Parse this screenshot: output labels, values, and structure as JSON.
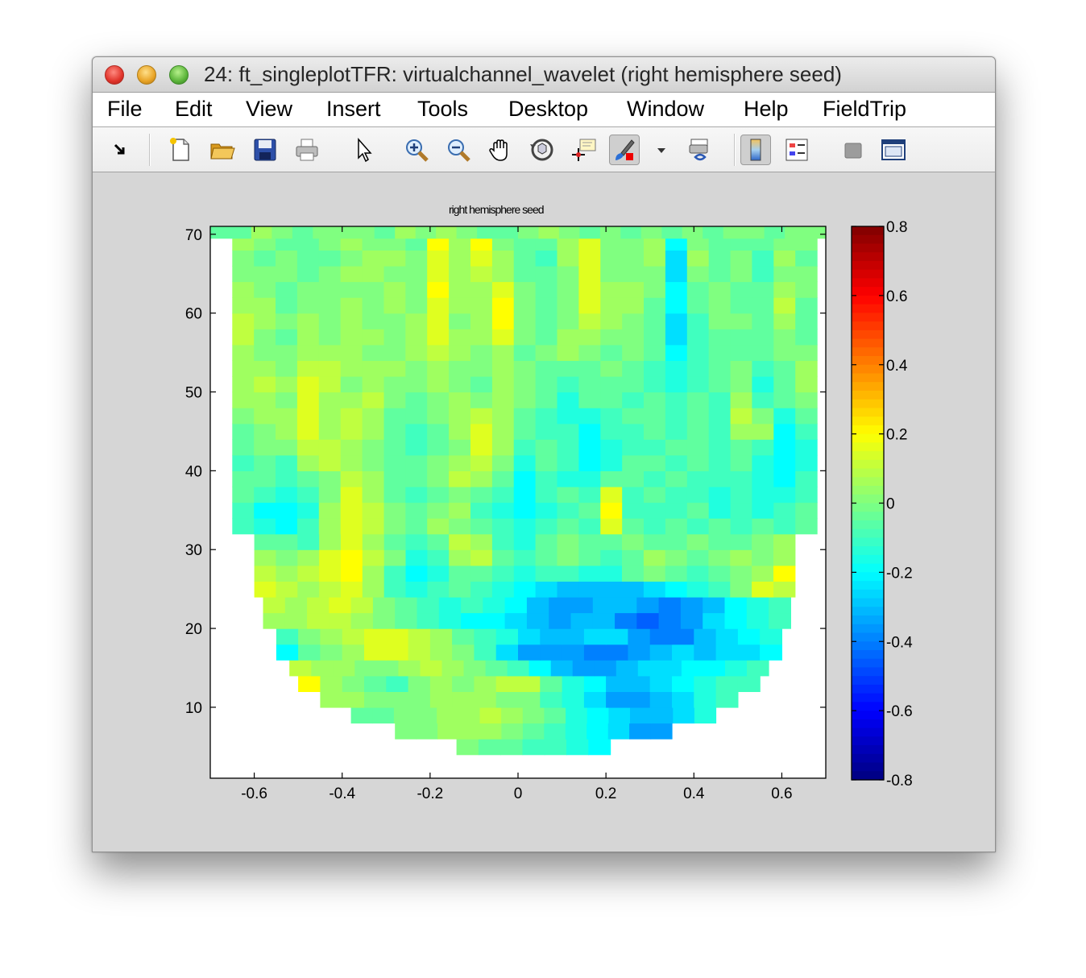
{
  "window": {
    "title": "24: ft_singleplotTFR: virtualchannel_wavelet (right hemisphere seed)"
  },
  "menu": [
    "File",
    "Edit",
    "View",
    "Insert",
    "Tools",
    "Desktop",
    "Window",
    "Help",
    "FieldTrip"
  ],
  "toolbar": [
    {
      "name": "arrow-dock-icon"
    },
    {
      "name": "new-figure-icon"
    },
    {
      "name": "open-file-icon"
    },
    {
      "name": "save-figure-icon"
    },
    {
      "name": "print-figure-icon"
    },
    {
      "name": "edit-plot-icon"
    },
    {
      "name": "zoom-in-icon"
    },
    {
      "name": "zoom-out-icon"
    },
    {
      "name": "pan-icon"
    },
    {
      "name": "rotate-3d-icon"
    },
    {
      "name": "data-cursor-icon"
    },
    {
      "name": "brush-icon"
    },
    {
      "name": "brush-dropdown-icon"
    },
    {
      "name": "link-plot-icon"
    },
    {
      "name": "insert-colorbar-icon"
    },
    {
      "name": "insert-legend-icon"
    },
    {
      "name": "hide-plot-tools-icon"
    },
    {
      "name": "show-plot-tools-icon"
    }
  ],
  "plot": {
    "title": "right hemisphere seed"
  },
  "chart_data": {
    "type": "heatmap",
    "title": "right hemisphere seed",
    "xlabel": "",
    "ylabel": "",
    "xlim": [
      -0.7,
      0.7
    ],
    "ylim": [
      1,
      71
    ],
    "x_ticks": [
      -0.6,
      -0.4,
      -0.2,
      0,
      0.2,
      0.4,
      0.6
    ],
    "x_tick_labels": [
      "-0.6",
      "-0.4",
      "-0.2",
      "0",
      "0.2",
      "0.4",
      "0.6"
    ],
    "y_ticks": [
      10,
      20,
      30,
      40,
      50,
      60,
      70
    ],
    "y_tick_labels": [
      "10",
      "20",
      "30",
      "40",
      "50",
      "60",
      "70"
    ],
    "colormap": "jet",
    "clim": [
      -0.8,
      0.8
    ],
    "colorbar_ticks": [
      0.8,
      0.6,
      0.4,
      0.2,
      0,
      -0.2,
      -0.4,
      -0.6,
      -0.8
    ],
    "colorbar_tick_labels": [
      "0.8",
      "0.6",
      "0.4",
      "0.2",
      "0",
      "-0.2",
      "-0.4",
      "-0.6",
      "-0.8"
    ],
    "x_bins": [
      -0.65,
      -0.6,
      -0.55,
      -0.5,
      -0.45,
      -0.4,
      -0.35,
      -0.3,
      -0.25,
      -0.2,
      -0.15,
      -0.1,
      -0.05,
      0,
      0.05,
      0.1,
      0.15,
      0.2,
      0.25,
      0.3,
      0.35,
      0.4,
      0.45,
      0.5,
      0.55,
      0.6,
      0.65
    ],
    "rows": [
      {
        "y": 5,
        "x_from": -0.14,
        "x_to": 0.21,
        "values": [
          0.0,
          -0.05,
          -0.05,
          -0.1,
          -0.1,
          -0.15,
          -0.2
        ]
      },
      {
        "y": 7,
        "x_from": -0.28,
        "x_to": 0.35,
        "values": [
          0.0,
          0.0,
          0.05,
          0.05,
          0.05,
          0.0,
          -0.05,
          -0.1,
          -0.15,
          -0.2,
          -0.25,
          -0.35,
          -0.35
        ]
      },
      {
        "y": 9,
        "x_from": -0.38,
        "x_to": 0.45,
        "values": [
          -0.05,
          -0.05,
          0.0,
          0.0,
          0.05,
          0.05,
          0.1,
          0.05,
          0.0,
          -0.05,
          -0.15,
          -0.2,
          -0.25,
          -0.3,
          -0.3,
          -0.25,
          -0.15
        ]
      },
      {
        "y": 11,
        "x_from": -0.45,
        "x_to": 0.5,
        "values": [
          0.05,
          0.05,
          0.0,
          0.0,
          0.0,
          0.05,
          0.05,
          0.05,
          0.0,
          0.0,
          -0.1,
          -0.15,
          -0.25,
          -0.35,
          -0.35,
          -0.3,
          -0.25,
          -0.15,
          -0.1
        ]
      },
      {
        "y": 13,
        "x_from": -0.5,
        "x_to": 0.55,
        "values": [
          0.2,
          0.05,
          0.0,
          -0.05,
          -0.1,
          0.0,
          0.05,
          0.0,
          0.05,
          0.1,
          0.1,
          -0.05,
          -0.15,
          -0.2,
          -0.3,
          -0.3,
          -0.25,
          -0.2,
          -0.15,
          -0.1,
          -0.1
        ]
      },
      {
        "y": 15,
        "x_from": -0.52,
        "x_to": 0.57,
        "values": [
          0.1,
          0.05,
          0.05,
          0.0,
          0.0,
          0.05,
          0.1,
          0.05,
          0.0,
          -0.05,
          -0.1,
          -0.2,
          -0.3,
          -0.35,
          -0.35,
          -0.3,
          -0.25,
          -0.25,
          -0.2,
          -0.2,
          -0.15,
          -0.1
        ]
      },
      {
        "y": 17,
        "x_from": -0.55,
        "x_to": 0.6,
        "values": [
          -0.2,
          -0.05,
          0.0,
          0.05,
          0.15,
          0.15,
          0.1,
          0.05,
          0.0,
          -0.1,
          -0.25,
          -0.35,
          -0.35,
          -0.35,
          -0.4,
          -0.4,
          -0.35,
          -0.3,
          -0.25,
          -0.3,
          -0.25,
          -0.25,
          -0.2
        ]
      },
      {
        "y": 19,
        "x_from": -0.55,
        "x_to": 0.6,
        "values": [
          -0.1,
          0.0,
          0.05,
          0.1,
          0.15,
          0.15,
          0.1,
          0.05,
          -0.05,
          -0.1,
          -0.15,
          -0.25,
          -0.3,
          -0.3,
          -0.25,
          -0.25,
          -0.35,
          -0.4,
          -0.4,
          -0.3,
          -0.25,
          -0.2,
          -0.15
        ]
      },
      {
        "y": 21,
        "x_from": -0.58,
        "x_to": 0.62,
        "values": [
          0.05,
          0.05,
          0.1,
          0.1,
          0.05,
          0.0,
          -0.05,
          -0.1,
          -0.15,
          -0.2,
          -0.2,
          -0.25,
          -0.3,
          -0.35,
          -0.3,
          -0.3,
          -0.4,
          -0.45,
          -0.4,
          -0.35,
          -0.25,
          -0.2,
          -0.15,
          -0.1
        ]
      },
      {
        "y": 23,
        "x_from": -0.58,
        "x_to": 0.62,
        "values": [
          0.1,
          0.05,
          0.1,
          0.15,
          0.1,
          0.0,
          -0.05,
          -0.1,
          -0.15,
          -0.1,
          -0.15,
          -0.2,
          -0.3,
          -0.35,
          -0.35,
          -0.3,
          -0.3,
          -0.35,
          -0.4,
          -0.35,
          -0.3,
          -0.2,
          -0.15,
          -0.1
        ]
      },
      {
        "y": 25,
        "x_from": -0.6,
        "x_to": 0.63,
        "values": [
          0.15,
          0.1,
          0.05,
          0.1,
          0.15,
          0.05,
          -0.1,
          -0.15,
          -0.1,
          -0.05,
          -0.1,
          -0.15,
          -0.2,
          -0.25,
          -0.3,
          -0.3,
          -0.3,
          -0.3,
          -0.25,
          -0.2,
          -0.15,
          -0.1,
          0.0,
          0.15,
          0.1
        ]
      },
      {
        "y": 27,
        "x_from": -0.6,
        "x_to": 0.63,
        "values": [
          0.1,
          0.05,
          0.1,
          0.15,
          0.2,
          0.05,
          -0.1,
          -0.2,
          -0.15,
          -0.05,
          -0.05,
          -0.1,
          -0.15,
          -0.1,
          -0.1,
          -0.15,
          -0.15,
          -0.05,
          0.0,
          -0.05,
          -0.1,
          -0.05,
          0.0,
          0.05,
          0.2
        ]
      },
      {
        "y": 29,
        "x_from": -0.6,
        "x_to": 0.63,
        "values": [
          0.05,
          0.0,
          0.05,
          0.15,
          0.2,
          0.1,
          0.0,
          -0.15,
          -0.1,
          0.05,
          0.1,
          -0.05,
          -0.1,
          -0.05,
          0.0,
          -0.05,
          -0.1,
          -0.05,
          0.05,
          0.0,
          -0.05,
          0.0,
          0.05,
          0.0,
          0.05
        ]
      },
      {
        "y": 31,
        "x_from": -0.6,
        "x_to": 0.63,
        "values": [
          -0.05,
          -0.05,
          -0.1,
          0.05,
          0.15,
          0.05,
          -0.05,
          -0.1,
          -0.05,
          0.1,
          0.05,
          -0.1,
          -0.15,
          -0.05,
          0.0,
          -0.05,
          -0.05,
          0.0,
          -0.05,
          -0.05,
          0.0,
          -0.05,
          -0.05,
          0.0,
          0.05
        ]
      },
      {
        "y": 33,
        "x_from": -0.65,
        "x_to": 0.68,
        "values": [
          -0.1,
          -0.15,
          -0.2,
          -0.1,
          0.05,
          0.15,
          0.1,
          0.0,
          -0.05,
          0.05,
          0.0,
          -0.05,
          -0.1,
          -0.15,
          -0.1,
          -0.05,
          -0.1,
          0.15,
          -0.05,
          -0.1,
          -0.05,
          -0.1,
          -0.05,
          -0.1,
          -0.05,
          -0.1,
          -0.05
        ]
      },
      {
        "y": 35,
        "x_from": -0.65,
        "x_to": 0.68,
        "values": [
          -0.1,
          -0.2,
          -0.2,
          -0.15,
          0.05,
          0.15,
          0.1,
          0.0,
          -0.05,
          0.0,
          0.05,
          -0.1,
          -0.15,
          -0.2,
          -0.15,
          -0.1,
          -0.05,
          0.2,
          -0.1,
          -0.1,
          -0.1,
          -0.05,
          -0.15,
          -0.1,
          -0.15,
          -0.1,
          -0.05
        ]
      },
      {
        "y": 37,
        "x_from": -0.65,
        "x_to": 0.68,
        "values": [
          -0.05,
          -0.1,
          -0.15,
          -0.1,
          0.0,
          0.15,
          0.05,
          -0.05,
          -0.1,
          -0.05,
          0.0,
          -0.05,
          -0.1,
          -0.2,
          -0.1,
          -0.05,
          -0.1,
          0.15,
          -0.1,
          -0.05,
          -0.1,
          -0.1,
          -0.15,
          -0.1,
          -0.15,
          -0.15,
          -0.1
        ]
      },
      {
        "y": 39,
        "x_from": -0.65,
        "x_to": 0.68,
        "values": [
          -0.05,
          -0.05,
          -0.1,
          -0.05,
          0.0,
          0.1,
          0.05,
          -0.05,
          -0.05,
          0.0,
          0.1,
          0.05,
          -0.05,
          -0.2,
          -0.1,
          -0.15,
          -0.15,
          -0.05,
          -0.05,
          -0.1,
          -0.05,
          -0.1,
          -0.1,
          -0.1,
          -0.15,
          -0.2,
          -0.1
        ]
      },
      {
        "y": 41,
        "x_from": -0.65,
        "x_to": 0.68,
        "values": [
          -0.1,
          -0.05,
          -0.1,
          0.05,
          0.1,
          0.05,
          0.0,
          -0.05,
          -0.05,
          0.0,
          0.05,
          0.1,
          0.0,
          -0.15,
          -0.05,
          -0.1,
          -0.2,
          -0.15,
          -0.05,
          -0.05,
          -0.1,
          -0.05,
          -0.1,
          -0.05,
          -0.15,
          -0.2,
          -0.15
        ]
      },
      {
        "y": 43,
        "x_from": -0.65,
        "x_to": 0.68,
        "values": [
          -0.05,
          0.0,
          0.0,
          0.1,
          0.1,
          0.05,
          0.0,
          -0.05,
          -0.1,
          -0.05,
          0.0,
          0.15,
          0.05,
          -0.1,
          -0.05,
          -0.1,
          -0.2,
          -0.15,
          -0.1,
          -0.1,
          -0.05,
          -0.05,
          -0.1,
          -0.05,
          -0.1,
          -0.2,
          -0.15
        ]
      },
      {
        "y": 45,
        "x_from": -0.65,
        "x_to": 0.68,
        "values": [
          -0.05,
          0.0,
          0.05,
          0.15,
          0.05,
          0.1,
          0.05,
          -0.05,
          -0.1,
          -0.05,
          0.05,
          0.15,
          0.05,
          -0.05,
          -0.1,
          -0.1,
          -0.2,
          -0.1,
          -0.1,
          -0.05,
          -0.1,
          -0.05,
          -0.1,
          0.05,
          0.05,
          -0.2,
          -0.1
        ]
      },
      {
        "y": 47,
        "x_from": -0.65,
        "x_to": 0.68,
        "values": [
          0.0,
          0.05,
          0.05,
          0.15,
          0.05,
          0.1,
          0.05,
          -0.05,
          -0.05,
          0.0,
          0.05,
          0.1,
          0.05,
          -0.05,
          -0.1,
          -0.15,
          -0.15,
          -0.1,
          -0.05,
          -0.05,
          -0.1,
          -0.05,
          -0.1,
          0.1,
          0.0,
          -0.15,
          -0.05
        ]
      },
      {
        "y": 49,
        "x_from": -0.65,
        "x_to": 0.68,
        "values": [
          0.05,
          0.05,
          0.0,
          0.15,
          0.05,
          0.05,
          0.1,
          0.0,
          -0.05,
          0.0,
          0.05,
          0.0,
          0.05,
          0.0,
          -0.05,
          -0.15,
          -0.05,
          -0.05,
          -0.1,
          -0.05,
          -0.1,
          -0.05,
          -0.1,
          0.05,
          -0.1,
          -0.05,
          0.0
        ]
      },
      {
        "y": 51,
        "x_from": -0.65,
        "x_to": 0.68,
        "values": [
          0.05,
          0.1,
          0.05,
          0.15,
          0.1,
          0.0,
          0.05,
          0.0,
          0.0,
          0.05,
          0.0,
          -0.05,
          0.05,
          0.0,
          -0.05,
          -0.1,
          -0.05,
          -0.05,
          -0.05,
          -0.1,
          -0.15,
          -0.1,
          -0.05,
          0.0,
          -0.15,
          -0.05,
          0.05
        ]
      },
      {
        "y": 53,
        "x_from": -0.65,
        "x_to": 0.68,
        "values": [
          0.05,
          0.05,
          0.0,
          0.1,
          0.1,
          0.05,
          0.05,
          0.05,
          0.0,
          0.05,
          0.0,
          0.0,
          0.05,
          0.0,
          -0.05,
          -0.05,
          -0.05,
          0.0,
          -0.05,
          -0.1,
          -0.15,
          -0.1,
          -0.05,
          0.0,
          -0.1,
          -0.05,
          0.05
        ]
      },
      {
        "y": 55,
        "x_from": -0.65,
        "x_to": 0.68,
        "values": [
          0.05,
          0.0,
          0.0,
          0.05,
          0.05,
          0.05,
          0.0,
          0.0,
          0.05,
          0.1,
          0.05,
          0.0,
          0.05,
          -0.05,
          0.0,
          0.05,
          0.0,
          -0.05,
          0.0,
          -0.05,
          -0.2,
          -0.1,
          -0.05,
          -0.05,
          -0.05,
          0.0,
          0.0
        ]
      },
      {
        "y": 57,
        "x_from": -0.65,
        "x_to": 0.68,
        "values": [
          0.1,
          0.0,
          -0.05,
          0.05,
          0.0,
          0.05,
          0.05,
          0.0,
          0.05,
          0.15,
          0.05,
          0.05,
          0.15,
          0.0,
          -0.05,
          0.05,
          0.05,
          0.0,
          0.0,
          -0.05,
          -0.25,
          -0.1,
          -0.05,
          -0.05,
          -0.05,
          0.0,
          -0.05
        ]
      },
      {
        "y": 59,
        "x_from": -0.65,
        "x_to": 0.68,
        "values": [
          0.1,
          0.05,
          0.0,
          0.05,
          0.0,
          0.05,
          0.0,
          0.0,
          0.05,
          0.15,
          0.0,
          0.05,
          0.2,
          0.0,
          -0.05,
          0.0,
          0.1,
          0.05,
          0.0,
          -0.05,
          -0.25,
          -0.1,
          0.0,
          0.0,
          -0.05,
          0.05,
          -0.05
        ]
      },
      {
        "y": 61,
        "x_from": -0.65,
        "x_to": 0.68,
        "values": [
          0.05,
          0.05,
          -0.05,
          0.0,
          0.0,
          0.05,
          0.0,
          0.05,
          0.0,
          0.15,
          0.05,
          0.05,
          0.2,
          0.0,
          -0.05,
          0.0,
          0.15,
          0.05,
          0.05,
          -0.05,
          -0.2,
          -0.05,
          0.0,
          -0.05,
          -0.05,
          0.1,
          -0.05
        ]
      },
      {
        "y": 63,
        "x_from": -0.65,
        "x_to": 0.68,
        "values": [
          0.05,
          0.0,
          -0.05,
          0.0,
          0.0,
          0.0,
          0.0,
          0.05,
          0.0,
          0.2,
          0.05,
          0.05,
          0.15,
          0.0,
          -0.05,
          0.0,
          0.15,
          0.05,
          0.05,
          0.0,
          -0.2,
          -0.05,
          0.0,
          -0.05,
          -0.05,
          0.05,
          0.0
        ]
      },
      {
        "y": 65,
        "x_from": -0.65,
        "x_to": 0.68,
        "values": [
          0.0,
          0.0,
          0.0,
          -0.05,
          0.0,
          0.05,
          0.05,
          0.0,
          0.0,
          0.15,
          0.05,
          0.1,
          0.05,
          -0.05,
          -0.05,
          0.0,
          0.15,
          0.0,
          0.0,
          0.0,
          -0.25,
          0.0,
          -0.05,
          0.0,
          -0.1,
          0.0,
          0.0
        ]
      },
      {
        "y": 67,
        "x_from": -0.65,
        "x_to": 0.68,
        "values": [
          0.0,
          -0.05,
          0.0,
          -0.05,
          -0.05,
          0.0,
          0.05,
          0.05,
          0.0,
          0.15,
          0.05,
          0.15,
          0.05,
          -0.05,
          -0.1,
          0.05,
          0.15,
          0.0,
          0.0,
          0.05,
          -0.25,
          0.05,
          -0.05,
          0.0,
          -0.1,
          0.05,
          -0.05
        ]
      },
      {
        "y": 69,
        "x_from": -0.65,
        "x_to": 0.68,
        "values": [
          0.05,
          0.0,
          -0.05,
          -0.05,
          0.0,
          0.05,
          0.0,
          0.0,
          -0.05,
          0.2,
          0.05,
          0.2,
          0.0,
          -0.05,
          -0.05,
          0.05,
          0.15,
          0.0,
          0.0,
          0.05,
          -0.2,
          0.0,
          -0.05,
          -0.05,
          -0.05,
          0.0,
          0.0
        ]
      },
      {
        "y": 70.5,
        "x_from": -0.7,
        "x_to": 0.7,
        "values": [
          -0.05,
          -0.05,
          0.05,
          0.0,
          -0.05,
          0.0,
          0.0,
          0.0,
          -0.05,
          0.05,
          0.0,
          0.05,
          0.0,
          -0.05,
          -0.05,
          0.0,
          0.05,
          0.0,
          -0.05,
          0.0,
          -0.05,
          0.0,
          -0.05,
          0.0,
          -0.05,
          0.0,
          0.0,
          -0.05,
          0.0,
          0.0
        ]
      }
    ]
  }
}
